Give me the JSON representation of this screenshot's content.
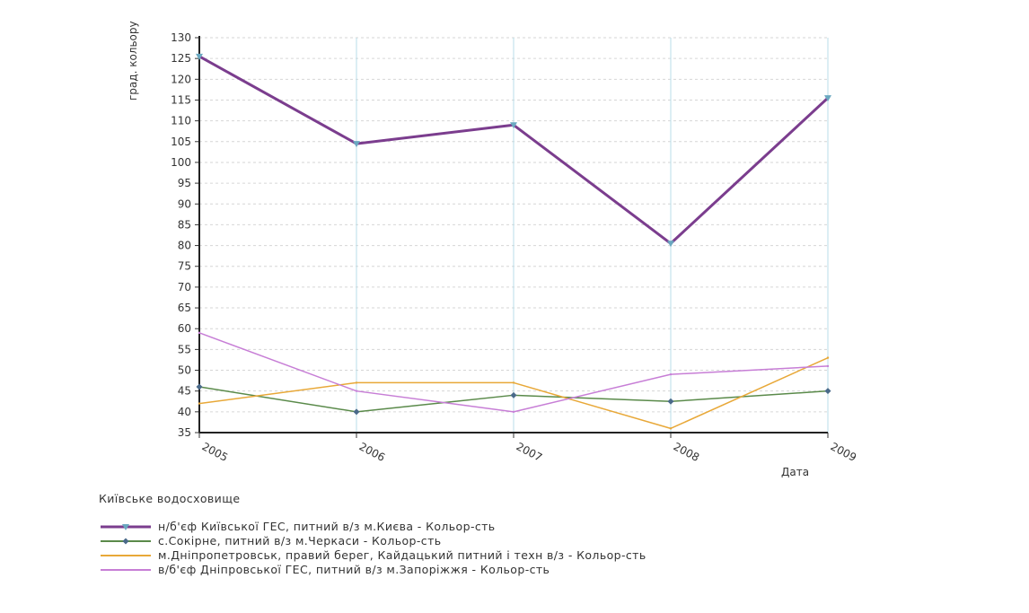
{
  "chart_data": {
    "type": "line",
    "title": "",
    "ylabel": "град. кольору",
    "xlabel": "Дата",
    "x": [
      "2005",
      "2006",
      "2007",
      "2008",
      "2009"
    ],
    "ylim": [
      35,
      130
    ],
    "ytick_step": 5,
    "grid": true,
    "legend_title": "Київське водосховище",
    "legend_position": "bottom-left",
    "series": [
      {
        "name": "н/б'єф Київської ГЕС, питний в/з м.Києва - Кольор-сть",
        "values": [
          125.5,
          104.5,
          109,
          80.5,
          115.5
        ],
        "color": "#7b3d8e",
        "width": 3,
        "marker": "triangle"
      },
      {
        "name": "с.Сокірне,  питний в/з м.Черкаси  - Кольор-сть",
        "values": [
          46,
          40,
          44,
          42.5,
          45
        ],
        "color": "#5a8a4a",
        "width": 1.5,
        "marker": "diamond"
      },
      {
        "name": "м.Дніпропетровськ, правий берег, Кайдацький питний і техн в/з - Кольор-сть",
        "values": [
          42,
          47,
          47,
          36,
          53
        ],
        "color": "#e8a838",
        "width": 1.5,
        "marker": "none"
      },
      {
        "name": "в/б'єф Дніпровської ГЕС, питний в/з м.Запоріжжя - Кольор-сть",
        "values": [
          59,
          45,
          40,
          49,
          51
        ],
        "color": "#c77ed6",
        "width": 1.5,
        "marker": "none"
      }
    ]
  }
}
